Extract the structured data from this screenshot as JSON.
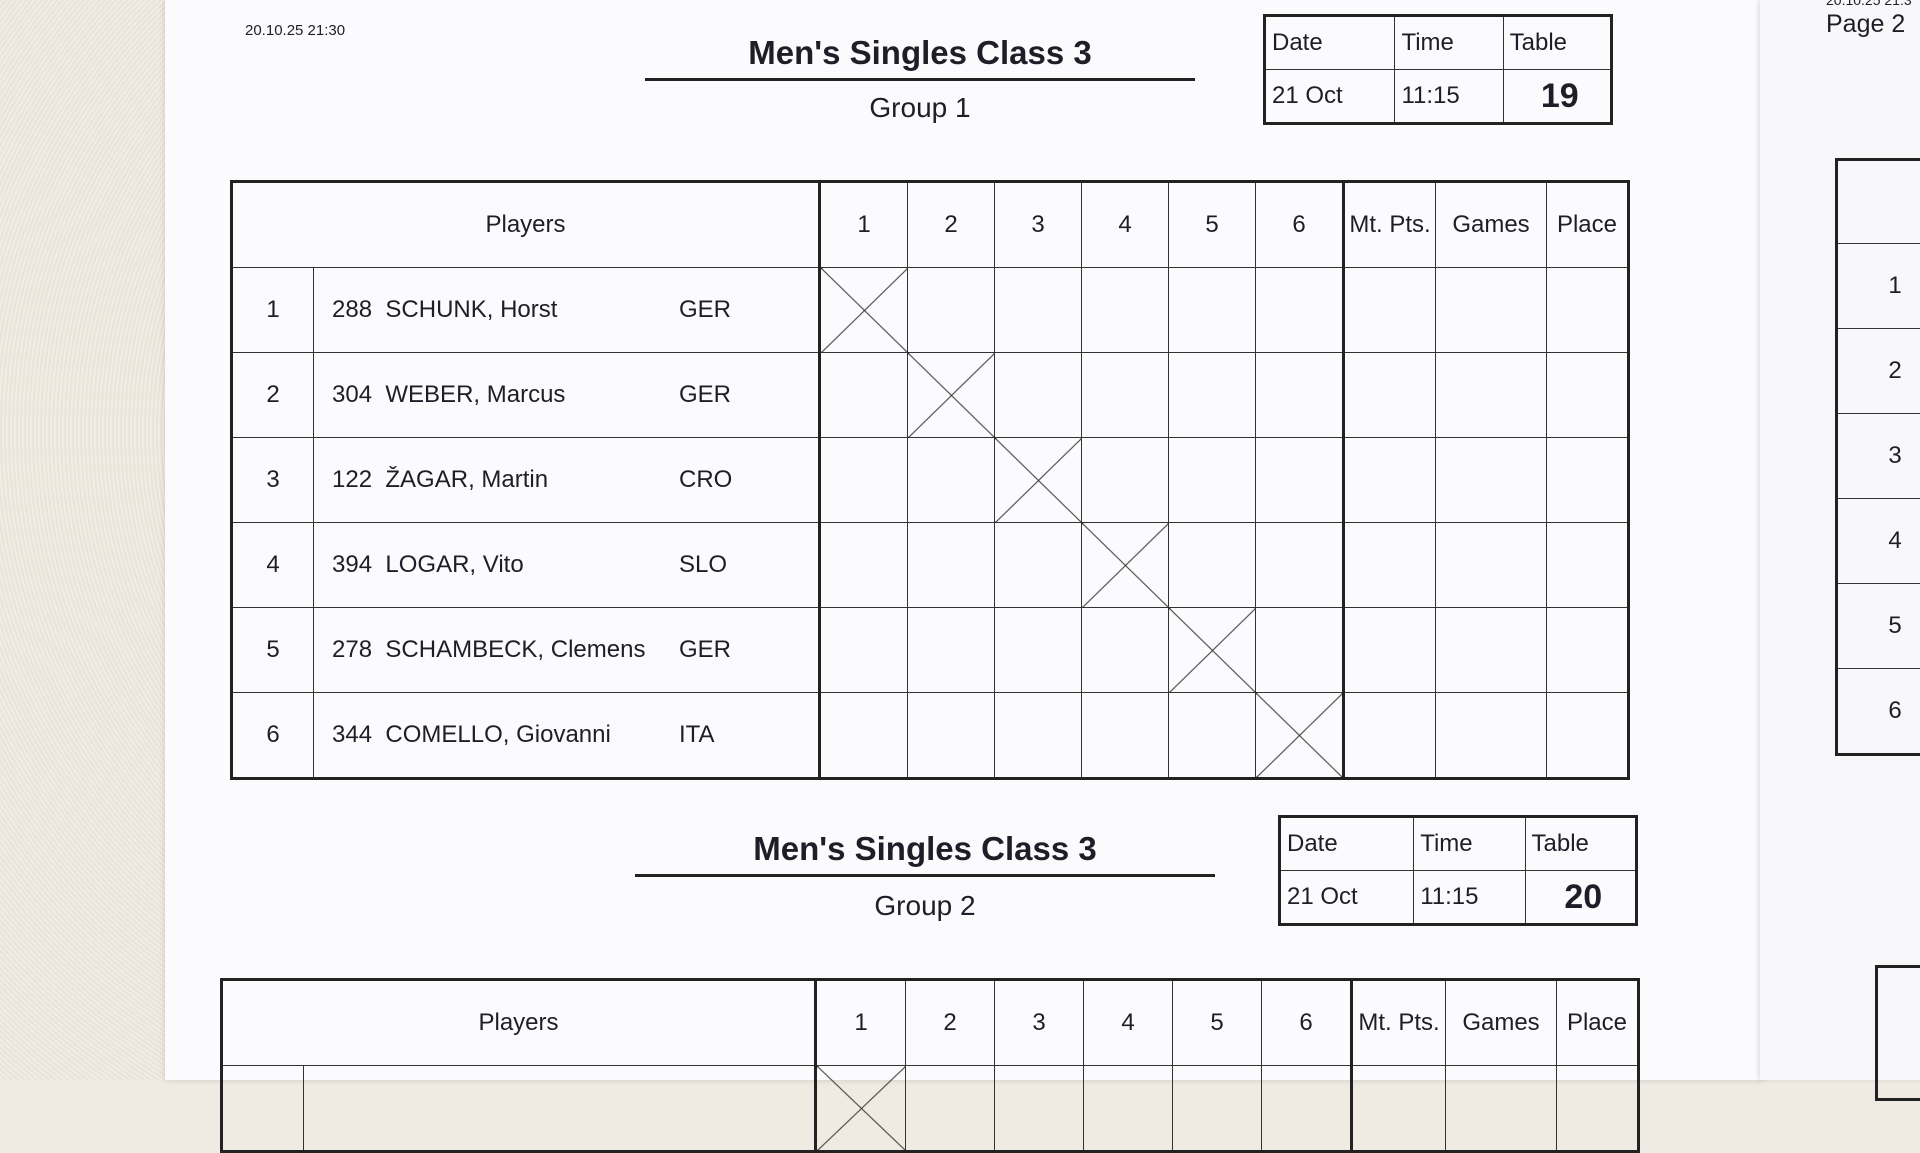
{
  "timestamp": "20.10.25 21:30",
  "next_page": {
    "timestamp": "20.10.25 21:3",
    "label": "Page 2",
    "row_numbers": [
      "1",
      "2",
      "3",
      "4",
      "5",
      "6"
    ]
  },
  "headers": {
    "players": "Players",
    "cols": [
      "1",
      "2",
      "3",
      "4",
      "5",
      "6"
    ],
    "mt_pts": "Mt. Pts.",
    "games": "Games",
    "place": "Place",
    "date": "Date",
    "time": "Time",
    "table": "Table"
  },
  "groups": [
    {
      "title": "Men's Singles Class 3",
      "group": "Group 1",
      "date": "21 Oct",
      "time": "11:15",
      "table": "19",
      "players": [
        {
          "pos": "1",
          "num": "288",
          "name": "SCHUNK, Horst",
          "country": "GER"
        },
        {
          "pos": "2",
          "num": "304",
          "name": "WEBER, Marcus",
          "country": "GER"
        },
        {
          "pos": "3",
          "num": "122",
          "name": "ŽAGAR, Martin",
          "country": "CRO"
        },
        {
          "pos": "4",
          "num": "394",
          "name": "LOGAR, Vito",
          "country": "SLO"
        },
        {
          "pos": "5",
          "num": "278",
          "name": "SCHAMBECK, Clemens",
          "country": "GER"
        },
        {
          "pos": "6",
          "num": "344",
          "name": "COMELLO, Giovanni",
          "country": "ITA"
        }
      ]
    },
    {
      "title": "Men's Singles Class 3",
      "group": "Group 2",
      "date": "21 Oct",
      "time": "11:15",
      "table": "20"
    }
  ]
}
